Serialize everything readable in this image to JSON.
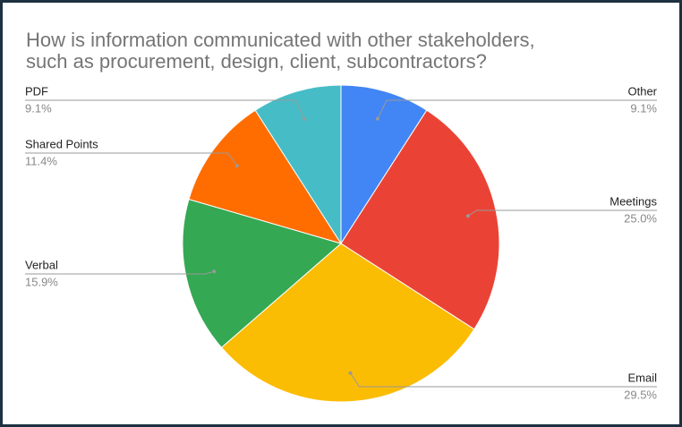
{
  "chart_data": {
    "type": "pie",
    "title": "How is information communicated with other stakeholders, such as procurement, design, client, subcontractors?",
    "categories": [
      "Other",
      "Meetings",
      "Email",
      "Verbal",
      "Shared Points",
      "PDF"
    ],
    "values": [
      9.1,
      25.0,
      29.5,
      15.9,
      11.4,
      9.1
    ],
    "value_labels": [
      "9.1%",
      "25.0%",
      "29.5%",
      "15.9%",
      "11.4%",
      "9.1%"
    ],
    "colors": [
      "#4285f4",
      "#ea4335",
      "#fbbc04",
      "#34a853",
      "#ff6d01",
      "#46bdc6"
    ]
  }
}
